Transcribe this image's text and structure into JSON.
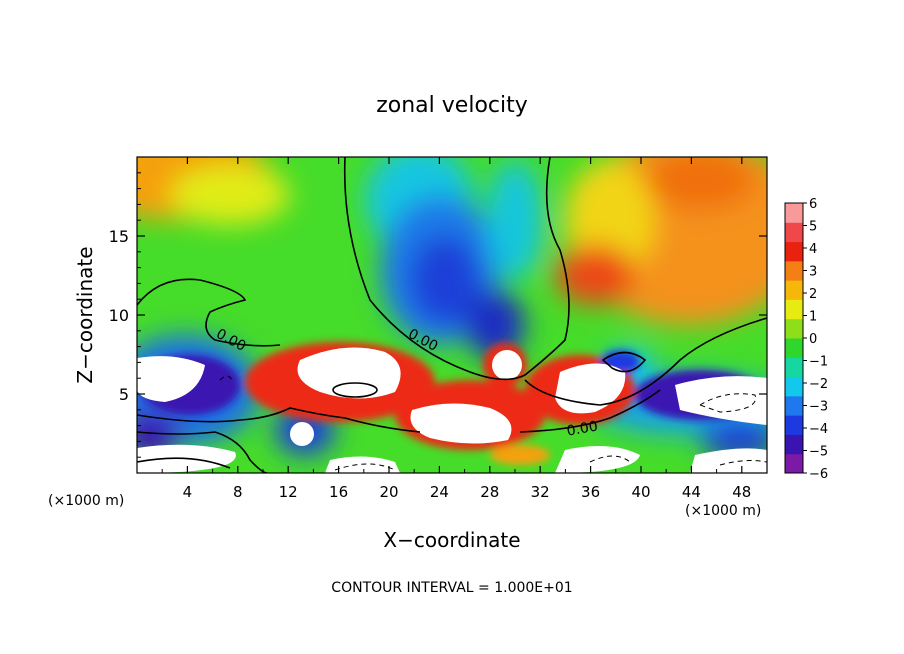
{
  "chart_data": {
    "type": "heatmap",
    "title": "zonal velocity",
    "xlabel": "X−coordinate",
    "ylabel": "Z−coordinate",
    "x_unit_left": "(×1000 m)",
    "x_unit_right": "(×1000 m)",
    "x_ticks": [
      "4",
      "8",
      "12",
      "16",
      "20",
      "24",
      "28",
      "32",
      "36",
      "40",
      "44",
      "48"
    ],
    "y_ticks": [
      "5",
      "10",
      "15"
    ],
    "xlim": [
      0,
      50
    ],
    "ylim": [
      0,
      20
    ],
    "colorbar": {
      "ticks": [
        "6",
        "5",
        "4",
        "3",
        "2",
        "1",
        "0",
        "−1",
        "−2",
        "−3",
        "−4",
        "−5",
        "−6"
      ],
      "range": [
        -6,
        6
      ],
      "colors": [
        "#7a1aa6",
        "#3a14b0",
        "#1c3ae0",
        "#1f78ee",
        "#12c8ec",
        "#16d7a2",
        "#2fd62c",
        "#8ede1a",
        "#e6ec12",
        "#f6b808",
        "#f47f14",
        "#e8220e",
        "#f0484a",
        "#f89a9a"
      ]
    },
    "contour_labels": [
      "0.00",
      "0.00",
      "0.00"
    ],
    "footer": "CONTOUR INTERVAL = 1.000E+01"
  }
}
